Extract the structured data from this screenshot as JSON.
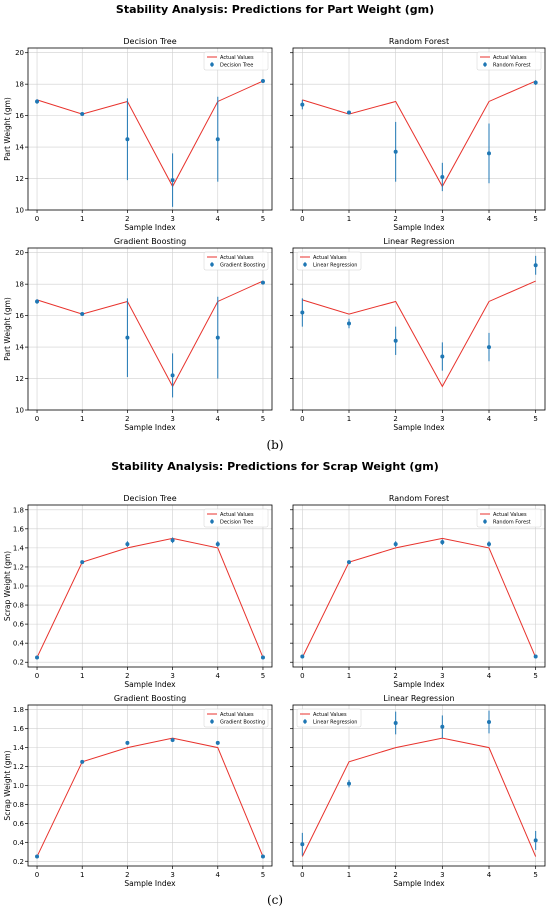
{
  "colors": {
    "actual": "#e8322c",
    "pred": "#1f77b4",
    "grid": "#cfcfcf",
    "axis": "#000000"
  },
  "panels": [
    {
      "label": "(b)",
      "title": "Stability Analysis: Predictions for Part Weight (gm)",
      "ylabel": "Part Weight (gm)",
      "xlabel": "Sample Index",
      "yticks": [
        "10",
        "12",
        "14",
        "16",
        "18",
        "20"
      ]
    },
    {
      "label": "(c)",
      "title": "Stability Analysis: Predictions for Scrap Weight (gm)",
      "ylabel": "Scrap Weight (gm)",
      "xlabel": "Sample Index",
      "yticks": [
        "0.2",
        "0.4",
        "0.6",
        "0.8",
        "1.0",
        "1.2",
        "1.4",
        "1.6",
        "1.8"
      ]
    }
  ],
  "chart_data": [
    {
      "type": "scatter",
      "panel": 0,
      "title": "Decision Tree",
      "xlabel": "Sample Index",
      "ylabel": "Part Weight (gm)",
      "x": [
        0,
        1,
        2,
        3,
        4,
        5
      ],
      "xlim": [
        -0.2,
        5.2
      ],
      "ylim": [
        10,
        20.3
      ],
      "legend": {
        "position": "top-right",
        "entries": [
          "Actual Values",
          "Decision Tree"
        ]
      },
      "series": [
        {
          "name": "Actual Values",
          "kind": "line",
          "values": [
            17.0,
            16.1,
            16.9,
            11.5,
            16.9,
            18.2
          ]
        },
        {
          "name": "Decision Tree",
          "kind": "errorbar",
          "values": [
            16.9,
            16.1,
            14.5,
            11.9,
            14.5,
            18.2
          ],
          "err": [
            0.15,
            0.05,
            2.6,
            1.7,
            2.7,
            0.1
          ]
        }
      ]
    },
    {
      "type": "scatter",
      "panel": 0,
      "title": "Random Forest",
      "xlabel": "Sample Index",
      "x": [
        0,
        1,
        2,
        3,
        4,
        5
      ],
      "xlim": [
        -0.2,
        5.2
      ],
      "ylim": [
        10,
        20.3
      ],
      "legend": {
        "position": "top-right",
        "entries": [
          "Actual Values",
          "Random Forest"
        ]
      },
      "series": [
        {
          "name": "Actual Values",
          "kind": "line",
          "values": [
            17.0,
            16.1,
            16.9,
            11.5,
            16.9,
            18.2
          ]
        },
        {
          "name": "Random Forest",
          "kind": "errorbar",
          "values": [
            16.7,
            16.2,
            13.7,
            12.1,
            13.6,
            18.1
          ],
          "err": [
            0.3,
            0.1,
            1.9,
            0.9,
            1.9,
            0.15
          ]
        }
      ]
    },
    {
      "type": "scatter",
      "panel": 0,
      "title": "Gradient Boosting",
      "xlabel": "Sample Index",
      "ylabel": "Part Weight (gm)",
      "x": [
        0,
        1,
        2,
        3,
        4,
        5
      ],
      "xlim": [
        -0.2,
        5.2
      ],
      "ylim": [
        10,
        20.3
      ],
      "legend": {
        "position": "top-right",
        "entries": [
          "Actual Values",
          "Gradient Boosting"
        ]
      },
      "series": [
        {
          "name": "Actual Values",
          "kind": "line",
          "values": [
            17.0,
            16.1,
            16.9,
            11.5,
            16.9,
            18.2
          ]
        },
        {
          "name": "Gradient Boosting",
          "kind": "errorbar",
          "values": [
            16.9,
            16.1,
            14.6,
            12.2,
            14.6,
            18.1
          ],
          "err": [
            0.15,
            0.05,
            2.5,
            1.4,
            2.6,
            0.1
          ]
        }
      ]
    },
    {
      "type": "scatter",
      "panel": 0,
      "title": "Linear Regression",
      "xlabel": "Sample Index",
      "x": [
        0,
        1,
        2,
        3,
        4,
        5
      ],
      "xlim": [
        -0.2,
        5.2
      ],
      "ylim": [
        10,
        20.3
      ],
      "legend": {
        "position": "top-left",
        "entries": [
          "Actual Values",
          "Linear Regression"
        ]
      },
      "series": [
        {
          "name": "Actual Values",
          "kind": "line",
          "values": [
            17.0,
            16.1,
            16.9,
            11.5,
            16.9,
            18.2
          ]
        },
        {
          "name": "Linear Regression",
          "kind": "errorbar",
          "values": [
            16.2,
            15.5,
            14.4,
            13.4,
            14.0,
            19.2
          ],
          "err": [
            0.9,
            0.3,
            0.9,
            0.9,
            0.9,
            0.6
          ]
        }
      ]
    },
    {
      "type": "scatter",
      "panel": 1,
      "title": "Decision Tree",
      "xlabel": "Sample Index",
      "ylabel": "Scrap Weight (gm)",
      "x": [
        0,
        1,
        2,
        3,
        4,
        5
      ],
      "xlim": [
        -0.2,
        5.2
      ],
      "ylim": [
        0.15,
        1.85
      ],
      "legend": {
        "position": "top-right",
        "entries": [
          "Actual Values",
          "Decision Tree"
        ]
      },
      "series": [
        {
          "name": "Actual Values",
          "kind": "line",
          "values": [
            0.25,
            1.25,
            1.4,
            1.5,
            1.4,
            0.25
          ]
        },
        {
          "name": "Decision Tree",
          "kind": "errorbar",
          "values": [
            0.25,
            1.25,
            1.44,
            1.48,
            1.44,
            0.25
          ],
          "err": [
            0.01,
            0.01,
            0.03,
            0.03,
            0.03,
            0.01
          ]
        }
      ]
    },
    {
      "type": "scatter",
      "panel": 1,
      "title": "Random Forest",
      "xlabel": "Sample Index",
      "x": [
        0,
        1,
        2,
        3,
        4,
        5
      ],
      "xlim": [
        -0.2,
        5.2
      ],
      "ylim": [
        0.15,
        1.85
      ],
      "legend": {
        "position": "top-right",
        "entries": [
          "Actual Values",
          "Random Forest"
        ]
      },
      "series": [
        {
          "name": "Actual Values",
          "kind": "line",
          "values": [
            0.25,
            1.25,
            1.4,
            1.5,
            1.4,
            0.25
          ]
        },
        {
          "name": "Random Forest",
          "kind": "errorbar",
          "values": [
            0.26,
            1.25,
            1.44,
            1.46,
            1.44,
            0.26
          ],
          "err": [
            0.02,
            0.01,
            0.03,
            0.03,
            0.03,
            0.02
          ]
        }
      ]
    },
    {
      "type": "scatter",
      "panel": 1,
      "title": "Gradient Boosting",
      "xlabel": "Sample Index",
      "ylabel": "Scrap Weight (gm)",
      "x": [
        0,
        1,
        2,
        3,
        4,
        5
      ],
      "xlim": [
        -0.2,
        5.2
      ],
      "ylim": [
        0.15,
        1.85
      ],
      "legend": {
        "position": "top-right",
        "entries": [
          "Actual Values",
          "Gradient Boosting"
        ]
      },
      "series": [
        {
          "name": "Actual Values",
          "kind": "line",
          "values": [
            0.25,
            1.25,
            1.4,
            1.5,
            1.4,
            0.25
          ]
        },
        {
          "name": "Gradient Boosting",
          "kind": "errorbar",
          "values": [
            0.25,
            1.25,
            1.45,
            1.48,
            1.45,
            0.25
          ],
          "err": [
            0.01,
            0.01,
            0.02,
            0.02,
            0.02,
            0.01
          ]
        }
      ]
    },
    {
      "type": "scatter",
      "panel": 1,
      "title": "Linear Regression",
      "xlabel": "Sample Index",
      "x": [
        0,
        1,
        2,
        3,
        4,
        5
      ],
      "xlim": [
        -0.2,
        5.2
      ],
      "ylim": [
        0.15,
        1.85
      ],
      "legend": {
        "position": "top-left",
        "entries": [
          "Actual Values",
          "Linear Regression"
        ]
      },
      "series": [
        {
          "name": "Actual Values",
          "kind": "line",
          "values": [
            0.25,
            1.25,
            1.4,
            1.5,
            1.4,
            0.25
          ]
        },
        {
          "name": "Linear Regression",
          "kind": "errorbar",
          "values": [
            0.38,
            1.02,
            1.66,
            1.62,
            1.67,
            0.42
          ],
          "err": [
            0.12,
            0.04,
            0.12,
            0.12,
            0.12,
            0.1
          ]
        }
      ]
    }
  ]
}
